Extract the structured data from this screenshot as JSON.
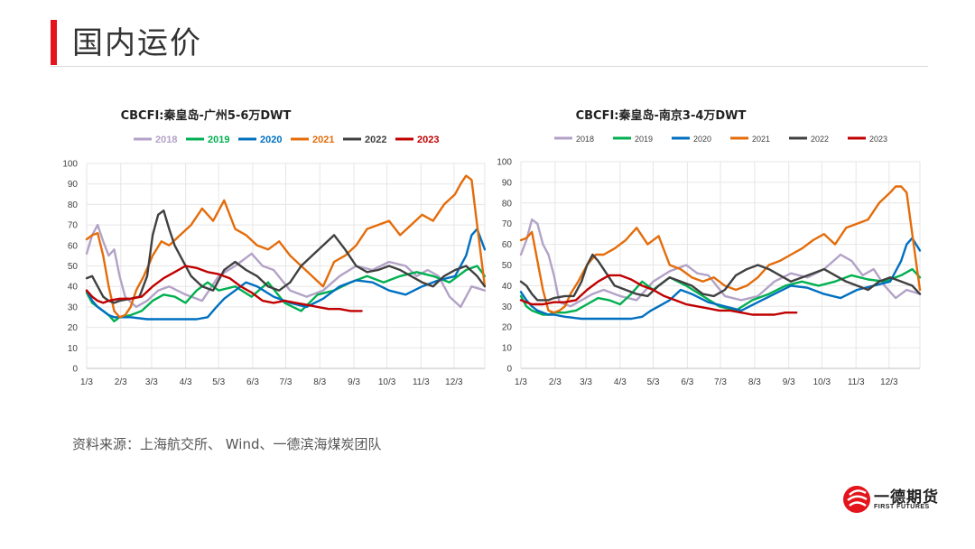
{
  "header": {
    "title": "国内运价"
  },
  "source": "资料来源：上海航交所、 Wind、一德滨海煤炭团队",
  "logo": {
    "name_cn": "一德期货",
    "name_en": "FIRST FUTURES"
  },
  "colors": {
    "2018": "#b3a2c7",
    "2019": "#00b050",
    "2020": "#0070c0",
    "2021": "#e46c0a",
    "2022": "#404040",
    "2023": "#c00000",
    "accent": "#e3141c"
  },
  "chart_data": [
    {
      "type": "line",
      "title": "CBCFI:秦皇岛-广州5-6万DWT",
      "xlabel": "",
      "ylabel": "",
      "ylim": [
        0,
        100
      ],
      "yticks": [
        "100",
        "90",
        "80",
        "70",
        "60",
        "50",
        "40",
        "30",
        "20",
        "10",
        "0"
      ],
      "xticks": [
        {
          "label": "1/3",
          "x": 0
        },
        {
          "label": "2/3",
          "x": 31
        },
        {
          "label": "3/3",
          "x": 59
        },
        {
          "label": "4/3",
          "x": 90
        },
        {
          "label": "5/3",
          "x": 120
        },
        {
          "label": "6/3",
          "x": 151
        },
        {
          "label": "7/3",
          "x": 181
        },
        {
          "label": "8/3",
          "x": 212
        },
        {
          "label": "9/3",
          "x": 243
        },
        {
          "label": "10/3",
          "x": 273
        },
        {
          "label": "11/3",
          "x": 304
        },
        {
          "label": "12/3",
          "x": 334
        }
      ],
      "xlim": [
        0,
        362
      ],
      "grid": true,
      "legend": "top",
      "series": [
        {
          "name": "2018",
          "color": "#b3a2c7",
          "x": [
            0,
            5,
            10,
            15,
            20,
            25,
            30,
            35,
            45,
            55,
            65,
            75,
            90,
            105,
            120,
            135,
            150,
            160,
            170,
            185,
            200,
            215,
            230,
            245,
            260,
            275,
            290,
            300,
            310,
            320,
            330,
            340,
            350,
            362
          ],
          "y": [
            56,
            65,
            70,
            62,
            55,
            58,
            45,
            35,
            30,
            33,
            38,
            40,
            36,
            33,
            45,
            50,
            56,
            50,
            48,
            38,
            35,
            38,
            45,
            50,
            48,
            52,
            50,
            45,
            48,
            45,
            35,
            30,
            40,
            38
          ]
        },
        {
          "name": "2019",
          "color": "#00b050",
          "x": [
            0,
            5,
            10,
            15,
            20,
            25,
            30,
            40,
            50,
            60,
            70,
            80,
            90,
            100,
            110,
            120,
            135,
            150,
            165,
            180,
            195,
            210,
            225,
            240,
            255,
            270,
            285,
            300,
            315,
            330,
            345,
            355,
            362
          ],
          "y": [
            37,
            32,
            30,
            28,
            26,
            23,
            25,
            26,
            28,
            33,
            36,
            35,
            32,
            38,
            42,
            38,
            40,
            35,
            42,
            32,
            28,
            36,
            38,
            42,
            45,
            42,
            45,
            47,
            45,
            42,
            48,
            50,
            45
          ]
        },
        {
          "name": "2020",
          "color": "#0070c0",
          "x": [
            0,
            5,
            10,
            15,
            20,
            25,
            30,
            40,
            55,
            70,
            85,
            100,
            110,
            118,
            125,
            135,
            145,
            155,
            170,
            185,
            200,
            215,
            230,
            245,
            260,
            275,
            290,
            305,
            320,
            335,
            345,
            350,
            355,
            362
          ],
          "y": [
            38,
            33,
            30,
            28,
            26,
            25,
            25,
            25,
            24,
            24,
            24,
            24,
            25,
            30,
            34,
            38,
            42,
            40,
            35,
            32,
            30,
            34,
            40,
            43,
            42,
            38,
            36,
            40,
            43,
            45,
            55,
            65,
            68,
            58
          ]
        },
        {
          "name": "2021",
          "color": "#e46c0a",
          "x": [
            0,
            5,
            10,
            15,
            20,
            25,
            30,
            35,
            40,
            45,
            52,
            60,
            68,
            75,
            85,
            95,
            105,
            115,
            125,
            135,
            145,
            155,
            165,
            175,
            185,
            195,
            205,
            215,
            225,
            235,
            245,
            255,
            265,
            275,
            285,
            295,
            305,
            315,
            325,
            335,
            340,
            345,
            350,
            355,
            362
          ],
          "y": [
            63,
            65,
            66,
            55,
            40,
            28,
            25,
            26,
            30,
            38,
            45,
            55,
            62,
            60,
            65,
            70,
            78,
            72,
            82,
            68,
            65,
            60,
            58,
            62,
            55,
            50,
            45,
            40,
            52,
            55,
            60,
            68,
            70,
            72,
            65,
            70,
            75,
            72,
            80,
            85,
            90,
            94,
            92,
            70,
            40
          ]
        },
        {
          "name": "2022",
          "color": "#404040",
          "x": [
            0,
            5,
            10,
            15,
            20,
            25,
            30,
            40,
            48,
            55,
            60,
            65,
            70,
            75,
            80,
            85,
            95,
            105,
            115,
            125,
            135,
            145,
            155,
            165,
            175,
            185,
            195,
            205,
            215,
            225,
            235,
            245,
            255,
            265,
            275,
            285,
            295,
            305,
            315,
            325,
            335,
            345,
            355,
            362
          ],
          "y": [
            44,
            45,
            40,
            35,
            33,
            32,
            33,
            34,
            35,
            45,
            65,
            75,
            77,
            68,
            60,
            55,
            45,
            40,
            38,
            48,
            52,
            48,
            45,
            40,
            38,
            42,
            50,
            55,
            60,
            65,
            58,
            50,
            47,
            48,
            50,
            48,
            45,
            42,
            40,
            45,
            48,
            50,
            45,
            40
          ]
        },
        {
          "name": "2023",
          "color": "#c00000",
          "x": [
            0,
            5,
            10,
            15,
            20,
            30,
            40,
            50,
            60,
            70,
            80,
            90,
            100,
            110,
            120,
            130,
            140,
            150,
            160,
            170,
            180,
            190,
            200,
            210,
            220,
            230,
            240,
            250
          ],
          "y": [
            38,
            35,
            33,
            32,
            33,
            34,
            34,
            35,
            40,
            44,
            47,
            50,
            49,
            47,
            46,
            44,
            40,
            37,
            33,
            32,
            33,
            32,
            31,
            30,
            29,
            29,
            28,
            28
          ]
        }
      ]
    },
    {
      "type": "line",
      "title": "CBCFI:秦皇岛-南京3-4万DWT",
      "xlabel": "",
      "ylabel": "",
      "ylim": [
        0,
        100
      ],
      "yticks": [
        "100",
        "90",
        "80",
        "70",
        "60",
        "50",
        "40",
        "30",
        "20",
        "10",
        "0"
      ],
      "xticks": [
        {
          "label": "1/3",
          "x": 0
        },
        {
          "label": "2/3",
          "x": 31
        },
        {
          "label": "3/3",
          "x": 59
        },
        {
          "label": "4/3",
          "x": 90
        },
        {
          "label": "5/3",
          "x": 120
        },
        {
          "label": "6/3",
          "x": 151
        },
        {
          "label": "7/3",
          "x": 181
        },
        {
          "label": "8/3",
          "x": 212
        },
        {
          "label": "9/3",
          "x": 243
        },
        {
          "label": "10/3",
          "x": 273
        },
        {
          "label": "11/3",
          "x": 304
        },
        {
          "label": "12/3",
          "x": 334
        }
      ],
      "xlim": [
        0,
        362
      ],
      "grid": true,
      "legend": "top",
      "series": [
        {
          "name": "2018",
          "color": "#b3a2c7",
          "x": [
            0,
            5,
            10,
            15,
            20,
            25,
            30,
            35,
            45,
            55,
            65,
            75,
            90,
            105,
            120,
            135,
            150,
            160,
            170,
            185,
            200,
            215,
            230,
            245,
            260,
            275,
            290,
            300,
            310,
            320,
            330,
            340,
            350,
            362
          ],
          "y": [
            55,
            62,
            72,
            70,
            60,
            55,
            45,
            32,
            30,
            33,
            36,
            38,
            35,
            33,
            42,
            47,
            50,
            46,
            45,
            35,
            33,
            35,
            42,
            46,
            44,
            48,
            55,
            52,
            45,
            48,
            40,
            34,
            38,
            36
          ]
        },
        {
          "name": "2019",
          "color": "#00b050",
          "x": [
            0,
            5,
            10,
            15,
            20,
            25,
            30,
            40,
            50,
            60,
            70,
            80,
            90,
            100,
            110,
            120,
            135,
            150,
            165,
            180,
            195,
            210,
            225,
            240,
            255,
            270,
            285,
            300,
            315,
            330,
            345,
            355,
            362
          ],
          "y": [
            35,
            30,
            28,
            27,
            26,
            26,
            27,
            27,
            28,
            31,
            34,
            33,
            31,
            36,
            42,
            38,
            44,
            40,
            35,
            30,
            28,
            33,
            36,
            40,
            42,
            40,
            42,
            45,
            43,
            42,
            45,
            48,
            44
          ]
        },
        {
          "name": "2020",
          "color": "#0070c0",
          "x": [
            0,
            5,
            10,
            15,
            20,
            25,
            30,
            40,
            55,
            70,
            85,
            100,
            110,
            118,
            125,
            135,
            145,
            155,
            170,
            185,
            200,
            215,
            230,
            245,
            260,
            275,
            290,
            305,
            320,
            335,
            345,
            350,
            355,
            362
          ],
          "y": [
            37,
            33,
            30,
            28,
            27,
            26,
            26,
            25,
            24,
            24,
            24,
            24,
            25,
            28,
            30,
            33,
            38,
            36,
            32,
            30,
            28,
            32,
            36,
            40,
            39,
            36,
            34,
            38,
            40,
            42,
            52,
            60,
            63,
            57
          ]
        },
        {
          "name": "2021",
          "color": "#e46c0a",
          "x": [
            0,
            5,
            10,
            15,
            20,
            25,
            30,
            35,
            40,
            45,
            52,
            60,
            68,
            75,
            85,
            95,
            105,
            115,
            125,
            135,
            145,
            155,
            165,
            175,
            185,
            195,
            205,
            215,
            225,
            235,
            245,
            255,
            265,
            275,
            285,
            295,
            305,
            315,
            325,
            335,
            340,
            345,
            350,
            355,
            362
          ],
          "y": [
            62,
            63,
            66,
            52,
            38,
            28,
            27,
            28,
            30,
            36,
            42,
            50,
            55,
            55,
            58,
            62,
            68,
            60,
            64,
            50,
            48,
            44,
            42,
            44,
            40,
            38,
            40,
            44,
            50,
            52,
            55,
            58,
            62,
            65,
            60,
            68,
            70,
            72,
            80,
            85,
            88,
            88,
            85,
            65,
            38
          ]
        },
        {
          "name": "2022",
          "color": "#404040",
          "x": [
            0,
            5,
            10,
            15,
            20,
            25,
            30,
            40,
            48,
            55,
            60,
            65,
            70,
            75,
            80,
            85,
            95,
            105,
            115,
            125,
            135,
            145,
            155,
            165,
            175,
            185,
            195,
            205,
            215,
            225,
            235,
            245,
            255,
            265,
            275,
            285,
            295,
            305,
            315,
            325,
            335,
            345,
            355,
            362
          ],
          "y": [
            42,
            40,
            36,
            33,
            33,
            33,
            34,
            35,
            35,
            42,
            50,
            55,
            52,
            48,
            44,
            40,
            38,
            36,
            35,
            40,
            44,
            42,
            40,
            36,
            35,
            38,
            45,
            48,
            50,
            48,
            45,
            42,
            44,
            46,
            48,
            45,
            42,
            40,
            38,
            42,
            44,
            42,
            40,
            36
          ]
        },
        {
          "name": "2023",
          "color": "#c00000",
          "x": [
            0,
            5,
            10,
            15,
            20,
            30,
            40,
            50,
            60,
            70,
            80,
            90,
            100,
            110,
            120,
            130,
            140,
            150,
            160,
            170,
            180,
            190,
            200,
            210,
            220,
            230,
            240,
            250
          ],
          "y": [
            33,
            32,
            31,
            31,
            31,
            32,
            32,
            33,
            38,
            42,
            45,
            45,
            43,
            40,
            38,
            35,
            33,
            31,
            30,
            29,
            28,
            28,
            27,
            26,
            26,
            26,
            27,
            27
          ]
        }
      ]
    }
  ]
}
